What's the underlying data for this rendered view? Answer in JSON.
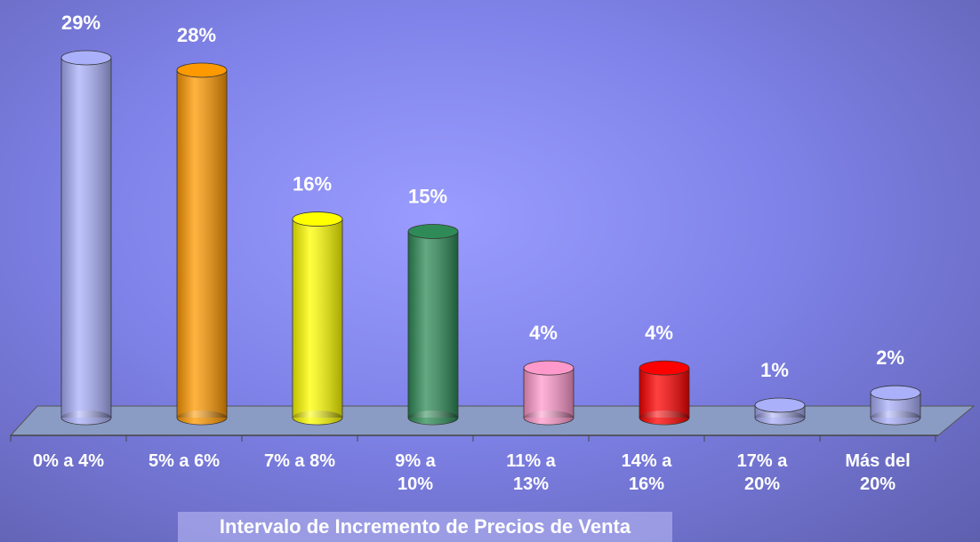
{
  "chart_data": {
    "type": "bar",
    "x_label": "Intervalo de Incremento de Precios de Venta",
    "categories": [
      "0% a 4%",
      "5% a 6%",
      "7% a 8%",
      "9% a\n10%",
      "11% a\n13%",
      "14% a\n16%",
      "17% a\n20%",
      "Más del\n20%"
    ],
    "values": [
      29,
      28,
      16,
      15,
      4,
      4,
      1,
      2
    ],
    "value_labels": [
      "29%",
      "28%",
      "16%",
      "15%",
      "4%",
      "4%",
      "1%",
      "2%"
    ],
    "colors": [
      "#aab0fa",
      "#ff9900",
      "#ffff00",
      "#2e8b57",
      "#ff99cc",
      "#ff0000",
      "#aab0fa",
      "#aab0fa"
    ]
  }
}
